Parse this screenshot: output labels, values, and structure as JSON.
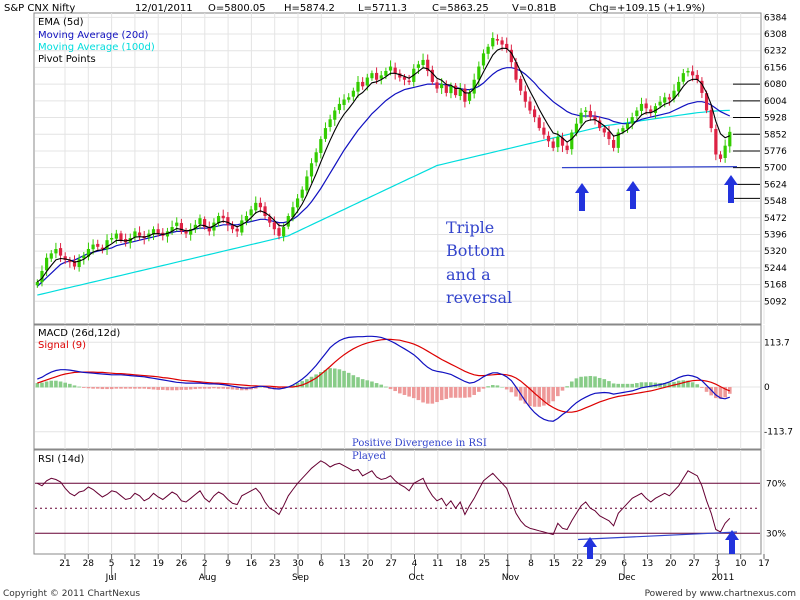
{
  "colors": {
    "up": "#33cc00",
    "down": "#dd2244",
    "ema5": "#000000",
    "ma20": "#1010c0",
    "ma100": "#00dddd",
    "pivot": "#000000",
    "macd": "#1010c0",
    "signal": "#dd0000",
    "histUp": "#88cc88",
    "histDown": "#ee9999",
    "rsi": "#660033",
    "trend": "#3344cc",
    "arrow": "#2233dd"
  },
  "header": {
    "symbol": "S&P CNX Nifty",
    "date": "12/01/2011",
    "open": "O=5800.05",
    "high": "H=5874.2",
    "low": "L=5711.3",
    "close": "C=5863.25",
    "volume": "V=0.81B",
    "change": "Chg=+109.15 (+1.9%)"
  },
  "legend": {
    "ema": "EMA (5d)",
    "ma20": "Moving Average (20d)",
    "ma100": "Moving Average (100d)",
    "pivot": "Pivot Points"
  },
  "macd_legend": {
    "macd": "MACD (26d,12d)",
    "signal": "Signal (9)"
  },
  "rsi_legend": {
    "rsi": "RSI (14d)"
  },
  "annotations": {
    "triple_bottom": [
      "Triple",
      "Bottom",
      "and a",
      "reversal"
    ],
    "rsi_note_1": "Positive Divergence in RSI",
    "rsi_note_2": "Played"
  },
  "footer": {
    "left": "Copyright © 2011 ChartNexus",
    "right": "Powered by www.chartnexus.com"
  },
  "chart_data": {
    "type": "candlestick",
    "x_ticks": [
      "21",
      "28",
      "5",
      "12",
      "19",
      "26",
      "2",
      "9",
      "16",
      "23",
      "30",
      "6",
      "13",
      "20",
      "27",
      "4",
      "11",
      "18",
      "25",
      "1",
      "8",
      "15",
      "22",
      "29",
      "6",
      "13",
      "20",
      "27",
      "3",
      "10",
      "17"
    ],
    "months": [
      "Jul",
      "Aug",
      "Sep",
      "Oct",
      "Nov",
      "Dec",
      "2011"
    ],
    "price": {
      "y_ticks": [
        "6384",
        "6308",
        "6232",
        "6156",
        "6080",
        "6004",
        "5928",
        "5852",
        "5776",
        "5700",
        "5624",
        "5548",
        "5472",
        "5396",
        "5320",
        "5244",
        "5168",
        "5092"
      ],
      "ylim": [
        5016,
        6390
      ],
      "pivot_levels": [
        6080,
        6004,
        5928,
        5852,
        5776,
        5700,
        5624,
        5560
      ],
      "support_line": [
        [
          5700,
          5700
        ]
      ],
      "close": [
        5180,
        5230,
        5290,
        5310,
        5330,
        5300,
        5280,
        5270,
        5250,
        5285,
        5300,
        5330,
        5350,
        5340,
        5330,
        5370,
        5380,
        5400,
        5370,
        5360,
        5380,
        5410,
        5390,
        5380,
        5400,
        5420,
        5400,
        5390,
        5410,
        5430,
        5450,
        5410,
        5400,
        5420,
        5440,
        5470,
        5430,
        5410,
        5450,
        5480,
        5470,
        5440,
        5420,
        5410,
        5460,
        5480,
        5510,
        5540,
        5520,
        5480,
        5450,
        5420,
        5390,
        5430,
        5480,
        5520,
        5560,
        5600,
        5660,
        5720,
        5770,
        5830,
        5880,
        5920,
        5960,
        5990,
        6010,
        6020,
        6050,
        6090,
        6070,
        6110,
        6130,
        6100,
        6120,
        6140,
        6160,
        6130,
        6110,
        6100,
        6090,
        6150,
        6170,
        6190,
        6140,
        6090,
        6060,
        6080,
        6040,
        6070,
        6030,
        6060,
        6000,
        6040,
        6100,
        6160,
        6220,
        6250,
        6290,
        6280,
        6260,
        6240,
        6180,
        6100,
        6050,
        6000,
        5960,
        5930,
        5880,
        5850,
        5820,
        5790,
        5840,
        5800,
        5780,
        5860,
        5900,
        5950,
        5960,
        5930,
        5920,
        5880,
        5860,
        5830,
        5790,
        5860,
        5880,
        5900,
        5930,
        5960,
        5990,
        5970,
        5950,
        5980,
        6000,
        6020,
        6010,
        6050,
        6090,
        6130,
        6140,
        6120,
        6100,
        6040,
        5960,
        5880,
        5760,
        5740,
        5800,
        5863
      ],
      "ma20": [
        5160,
        5180,
        5200,
        5220,
        5240,
        5260,
        5270,
        5275,
        5280,
        5290,
        5300,
        5310,
        5315,
        5320,
        5325,
        5330,
        5335,
        5345,
        5350,
        5355,
        5360,
        5365,
        5370,
        5375,
        5380,
        5385,
        5390,
        5395,
        5400,
        5405,
        5410,
        5410,
        5410,
        5415,
        5420,
        5425,
        5425,
        5425,
        5430,
        5435,
        5440,
        5440,
        5440,
        5440,
        5445,
        5450,
        5455,
        5460,
        5465,
        5465,
        5460,
        5455,
        5450,
        5450,
        5455,
        5465,
        5480,
        5500,
        5520,
        5545,
        5575,
        5605,
        5640,
        5675,
        5710,
        5745,
        5780,
        5810,
        5840,
        5870,
        5895,
        5920,
        5945,
        5965,
        5985,
        6005,
        6020,
        6035,
        6045,
        6055,
        6060,
        6065,
        6070,
        6075,
        6080,
        6080,
        6080,
        6080,
        6075,
        6070,
        6065,
        6060,
        6055,
        6055,
        6060,
        6070,
        6085,
        6105,
        6125,
        6140,
        6150,
        6155,
        6155,
        6150,
        6140,
        6125,
        6105,
        6085,
        6060,
        6040,
        6020,
        6000,
        5985,
        5970,
        5955,
        5945,
        5940,
        5935,
        5935,
        5935,
        5935,
        5930,
        5925,
        5920,
        5910,
        5905,
        5900,
        5900,
        5905,
        5910,
        5920,
        5925,
        5930,
        5935,
        5940,
        5945,
        5950,
        5960,
        5970,
        5980,
        5990,
        5995,
        6000,
        6000,
        5995,
        5985,
        5970,
        5955,
        5945,
        5935
      ],
      "ma100": [
        5120,
        5125,
        5130,
        5135,
        5140,
        5145,
        5150,
        5155,
        5160,
        5165,
        5170,
        5175,
        5180,
        5185,
        5190,
        5195,
        5200,
        5205,
        5210,
        5215,
        5220,
        5225,
        5230,
        5235,
        5240,
        5245,
        5250,
        5255,
        5260,
        5265,
        5270,
        5275,
        5280,
        5285,
        5290,
        5295,
        5300,
        5305,
        5310,
        5315,
        5320,
        5325,
        5330,
        5335,
        5340,
        5345,
        5350,
        5355,
        5360,
        5365,
        5370,
        5375,
        5380,
        5385,
        5390,
        5400,
        5410,
        5420,
        5430,
        5440,
        5450,
        5460,
        5470,
        5480,
        5490,
        5500,
        5510,
        5520,
        5530,
        5540,
        5550,
        5560,
        5570,
        5580,
        5590,
        5600,
        5610,
        5620,
        5630,
        5640,
        5650,
        5660,
        5670,
        5680,
        5690,
        5700,
        5710,
        5715,
        5720,
        5725,
        5730,
        5735,
        5740,
        5745,
        5750,
        5755,
        5760,
        5765,
        5770,
        5775,
        5780,
        5785,
        5790,
        5795,
        5800,
        5805,
        5810,
        5815,
        5820,
        5825,
        5830,
        5835,
        5840,
        5845,
        5850,
        5855,
        5860,
        5865,
        5870,
        5875,
        5880,
        5885,
        5890,
        5893,
        5896,
        5899,
        5902,
        5905,
        5908,
        5911,
        5914,
        5917,
        5920,
        5923,
        5926,
        5929,
        5932,
        5935,
        5938,
        5941,
        5944,
        5947,
        5950,
        5952,
        5954,
        5956,
        5958,
        5959,
        5960,
        5961
      ]
    },
    "macd": {
      "y_ticks": [
        "113.7",
        "0",
        "-113.7"
      ],
      "ylim": [
        -150,
        150
      ],
      "macd": [
        20,
        25,
        32,
        38,
        42,
        44,
        44,
        43,
        41,
        39,
        37,
        36,
        35,
        34,
        33,
        32,
        31,
        31,
        31,
        30,
        29,
        28,
        27,
        26,
        24,
        22,
        20,
        18,
        16,
        14,
        12,
        11,
        10,
        10,
        10,
        10,
        9,
        8,
        8,
        7,
        6,
        4,
        2,
        0,
        -2,
        -3,
        -2,
        0,
        2,
        1,
        -2,
        -4,
        -5,
        -3,
        0,
        5,
        12,
        20,
        30,
        42,
        55,
        70,
        85,
        100,
        110,
        118,
        123,
        126,
        127,
        128,
        128,
        129,
        129,
        128,
        126,
        122,
        117,
        111,
        104,
        97,
        90,
        82,
        72,
        60,
        50,
        43,
        40,
        38,
        35,
        32,
        26,
        20,
        14,
        10,
        12,
        18,
        26,
        32,
        36,
        36,
        32,
        26,
        16,
        0,
        -18,
        -36,
        -52,
        -65,
        -75,
        -82,
        -86,
        -87,
        -80,
        -70,
        -62,
        -50,
        -40,
        -32,
        -26,
        -20,
        -16,
        -15,
        -14,
        -15,
        -18,
        -16,
        -14,
        -12,
        -10,
        -6,
        -2,
        0,
        2,
        4,
        6,
        9,
        13,
        18,
        24,
        28,
        30,
        28,
        24,
        16,
        4,
        -8,
        -20,
        -28,
        -30,
        -26
      ],
      "signal": [
        10,
        14,
        18,
        22,
        26,
        30,
        33,
        35,
        37,
        38,
        38,
        38,
        38,
        37,
        37,
        36,
        35,
        34,
        34,
        33,
        32,
        31,
        30,
        29,
        28,
        27,
        26,
        24,
        23,
        21,
        19,
        17,
        16,
        15,
        14,
        13,
        12,
        11,
        10,
        10,
        9,
        8,
        7,
        6,
        5,
        4,
        3,
        3,
        2,
        2,
        2,
        1,
        0,
        0,
        0,
        0,
        2,
        5,
        10,
        16,
        23,
        32,
        42,
        52,
        63,
        73,
        82,
        90,
        97,
        103,
        108,
        112,
        115,
        118,
        120,
        121,
        121,
        120,
        119,
        116,
        113,
        109,
        104,
        98,
        91,
        84,
        77,
        70,
        64,
        58,
        52,
        46,
        40,
        35,
        31,
        29,
        29,
        30,
        31,
        32,
        32,
        31,
        28,
        23,
        15,
        5,
        -5,
        -16,
        -26,
        -36,
        -45,
        -52,
        -58,
        -62,
        -64,
        -64,
        -62,
        -58,
        -53,
        -48,
        -43,
        -38,
        -34,
        -30,
        -27,
        -24,
        -22,
        -20,
        -18,
        -16,
        -14,
        -12,
        -10,
        -7,
        -4,
        -1,
        2,
        5,
        8,
        11,
        14,
        16,
        17,
        17,
        15,
        12,
        7,
        1,
        -5,
        -10
      ]
    },
    "rsi": {
      "y_ticks": [
        "70%",
        "30%"
      ],
      "ylim": [
        15,
        95
      ],
      "levels": [
        70,
        50,
        30
      ],
      "values": [
        70,
        68,
        72,
        74,
        73,
        71,
        66,
        62,
        60,
        63,
        64,
        67,
        65,
        62,
        59,
        61,
        64,
        63,
        60,
        57,
        58,
        62,
        60,
        56,
        58,
        62,
        59,
        57,
        60,
        63,
        61,
        56,
        55,
        58,
        61,
        64,
        58,
        55,
        60,
        63,
        61,
        57,
        54,
        53,
        60,
        62,
        64,
        66,
        62,
        55,
        50,
        48,
        45,
        52,
        60,
        65,
        70,
        74,
        78,
        82,
        85,
        88,
        86,
        83,
        85,
        86,
        84,
        82,
        80,
        81,
        76,
        78,
        80,
        75,
        73,
        74,
        76,
        72,
        69,
        67,
        64,
        70,
        72,
        74,
        66,
        60,
        56,
        58,
        52,
        56,
        50,
        55,
        45,
        52,
        58,
        65,
        72,
        75,
        78,
        74,
        70,
        66,
        56,
        46,
        40,
        36,
        34,
        33,
        32,
        31,
        30,
        29,
        38,
        34,
        33,
        40,
        46,
        52,
        55,
        50,
        48,
        44,
        42,
        40,
        36,
        46,
        50,
        54,
        58,
        60,
        62,
        58,
        55,
        58,
        60,
        62,
        60,
        64,
        68,
        74,
        80,
        78,
        76,
        68,
        56,
        46,
        33,
        31,
        38,
        42
      ],
      "trend": [
        [
          25,
          33.5
        ],
        [
          60,
          42.5
        ]
      ]
    }
  }
}
